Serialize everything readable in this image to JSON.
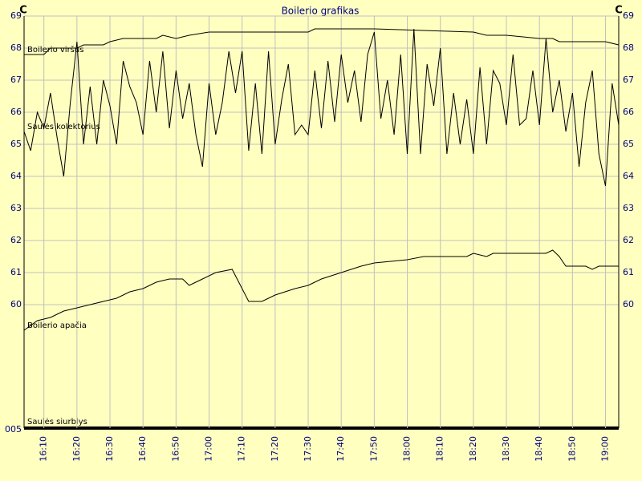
{
  "chart_data": {
    "type": "line",
    "title": "Boilerio grafikas",
    "y_unit": "C",
    "xlim": [
      "16:04",
      "19:04"
    ],
    "xticks": [
      "16:10",
      "16:20",
      "16:30",
      "16:40",
      "16:50",
      "17:00",
      "17:10",
      "17:20",
      "17:30",
      "17:40",
      "17:50",
      "18:00",
      "18:10",
      "18:20",
      "18:30",
      "18:40",
      "18:50",
      "19:00"
    ],
    "ylim": [
      56.4,
      69
    ],
    "yticks": [
      60,
      61,
      62,
      63,
      64,
      65,
      66,
      67,
      68,
      69
    ],
    "grid": true,
    "series": [
      {
        "name": "Boilerio viršus",
        "color": "#000000",
        "x": [
          "16:04",
          "16:10",
          "16:12",
          "16:20",
          "16:22",
          "16:28",
          "16:30",
          "16:34",
          "16:44",
          "16:46",
          "16:50",
          "16:54",
          "17:00",
          "17:30",
          "17:32",
          "17:50",
          "18:20",
          "18:24",
          "18:30",
          "18:40",
          "18:44",
          "18:46",
          "19:00",
          "19:04"
        ],
        "values": [
          67.8,
          67.8,
          68.0,
          68.0,
          68.1,
          68.1,
          68.2,
          68.3,
          68.3,
          68.4,
          68.3,
          68.4,
          68.5,
          68.5,
          68.6,
          68.6,
          68.5,
          68.4,
          68.4,
          68.3,
          68.3,
          68.2,
          68.2,
          68.1
        ]
      },
      {
        "name": "Saulės kolektorius",
        "color": "#000000",
        "x": [
          "16:04",
          "16:06",
          "16:08",
          "16:10",
          "16:12",
          "16:14",
          "16:16",
          "16:18",
          "16:20",
          "16:22",
          "16:24",
          "16:26",
          "16:28",
          "16:30",
          "16:32",
          "16:34",
          "16:36",
          "16:38",
          "16:40",
          "16:42",
          "16:44",
          "16:46",
          "16:48",
          "16:50",
          "16:52",
          "16:54",
          "16:56",
          "16:58",
          "17:00",
          "17:02",
          "17:04",
          "17:06",
          "17:08",
          "17:10",
          "17:12",
          "17:14",
          "17:16",
          "17:18",
          "17:20",
          "17:22",
          "17:24",
          "17:26",
          "17:28",
          "17:30",
          "17:32",
          "17:34",
          "17:36",
          "17:38",
          "17:40",
          "17:42",
          "17:44",
          "17:46",
          "17:48",
          "17:50",
          "17:52",
          "17:54",
          "17:56",
          "17:58",
          "18:00",
          "18:02",
          "18:04",
          "18:06",
          "18:08",
          "18:10",
          "18:12",
          "18:14",
          "18:16",
          "18:18",
          "18:20",
          "18:22",
          "18:24",
          "18:26",
          "18:28",
          "18:30",
          "18:32",
          "18:34",
          "18:36",
          "18:38",
          "18:40",
          "18:42",
          "18:44",
          "18:46",
          "18:48",
          "18:50",
          "18:52",
          "18:54",
          "18:56",
          "18:58",
          "19:00",
          "19:02",
          "19:04"
        ],
        "values": [
          65.4,
          64.8,
          66.0,
          65.5,
          66.6,
          65.2,
          64.0,
          66.3,
          68.2,
          65.0,
          66.8,
          65.0,
          67.0,
          66.2,
          65.0,
          67.6,
          66.8,
          66.3,
          65.3,
          67.6,
          66.0,
          67.9,
          65.5,
          67.3,
          65.8,
          66.9,
          65.3,
          64.3,
          66.9,
          65.3,
          66.3,
          67.9,
          66.6,
          67.9,
          64.8,
          66.9,
          64.7,
          67.9,
          65.0,
          66.4,
          67.5,
          65.3,
          65.6,
          65.3,
          67.3,
          65.5,
          67.6,
          65.7,
          67.8,
          66.3,
          67.3,
          65.7,
          67.8,
          68.5,
          65.8,
          67.0,
          65.3,
          67.8,
          64.7,
          68.6,
          64.7,
          67.5,
          66.2,
          68.0,
          64.7,
          66.6,
          65.0,
          66.4,
          64.7,
          67.4,
          65.0,
          67.3,
          66.9,
          65.6,
          67.8,
          65.6,
          65.8,
          67.3,
          65.6,
          68.3,
          66.0,
          67.0,
          65.4,
          66.6,
          64.3,
          66.3,
          67.3,
          64.7,
          63.7,
          66.9,
          65.6
        ]
      },
      {
        "name": "Boilerio apačia",
        "color": "#000000",
        "x": [
          "16:04",
          "16:08",
          "16:12",
          "16:16",
          "16:20",
          "16:24",
          "16:28",
          "16:32",
          "16:36",
          "16:40",
          "16:44",
          "16:48",
          "16:52",
          "16:54",
          "16:58",
          "17:02",
          "17:07",
          "17:12",
          "17:16",
          "17:20",
          "17:26",
          "17:30",
          "17:34",
          "17:40",
          "17:46",
          "17:50",
          "18:00",
          "18:05",
          "18:18",
          "18:20",
          "18:24",
          "18:26",
          "18:42",
          "18:44",
          "18:46",
          "18:48",
          "18:54",
          "18:56",
          "18:58",
          "19:04"
        ],
        "values": [
          59.2,
          59.5,
          59.6,
          59.8,
          59.9,
          60.0,
          60.1,
          60.2,
          60.4,
          60.5,
          60.7,
          60.8,
          60.8,
          60.6,
          60.8,
          61.0,
          61.1,
          60.1,
          60.1,
          60.3,
          60.5,
          60.6,
          60.8,
          61.0,
          61.2,
          61.3,
          61.4,
          61.5,
          61.5,
          61.6,
          61.5,
          61.6,
          61.6,
          61.7,
          61.5,
          61.2,
          61.2,
          61.1,
          61.2,
          61.2
        ]
      }
    ],
    "digital_channel": {
      "name": "Saulės siurblys",
      "label": "005"
    }
  }
}
